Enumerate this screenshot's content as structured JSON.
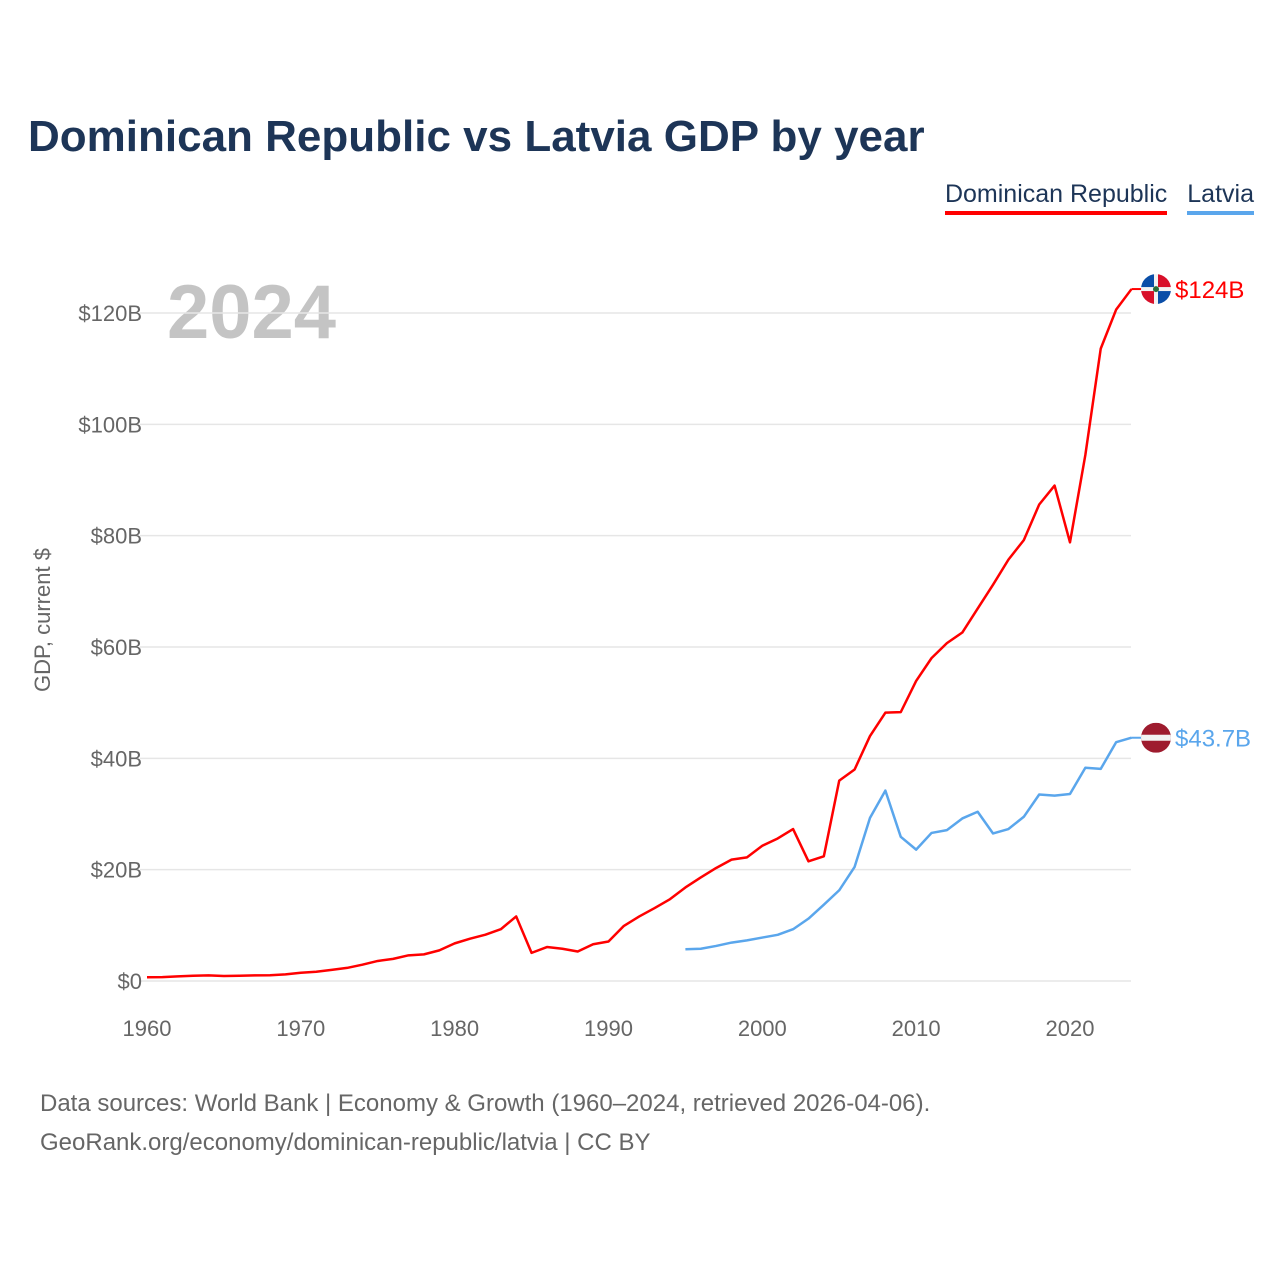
{
  "chart_data": {
    "type": "line",
    "title": "Dominican Republic vs Latvia GDP by year",
    "ylabel": "GDP, current $",
    "xlabel": "",
    "year_watermark": "2024",
    "xlim": [
      1960,
      2024
    ],
    "ylim": [
      0,
      125
    ],
    "x_ticks": [
      1960,
      1970,
      1980,
      1990,
      2000,
      2010,
      2020
    ],
    "x_tick_labels": [
      "1960",
      "1970",
      "1980",
      "1990",
      "2000",
      "2010",
      "2020"
    ],
    "y_ticks": [
      0,
      20,
      40,
      60,
      80,
      100,
      120
    ],
    "y_tick_labels": [
      "$0",
      "$20B",
      "$40B",
      "$60B",
      "$80B",
      "$100B",
      "$120B"
    ],
    "grid": true,
    "legend_placement": "top-right",
    "series": [
      {
        "name": "Dominican Republic",
        "color": "#ff0000",
        "end_label": "$124B",
        "flag": "dominican-republic-flag",
        "start_year": 1960,
        "values": [
          0.67,
          0.69,
          0.82,
          0.94,
          1.0,
          0.89,
          0.95,
          1.0,
          1.03,
          1.2,
          1.49,
          1.67,
          1.99,
          2.35,
          2.93,
          3.6,
          3.97,
          4.61,
          4.78,
          5.5,
          6.76,
          7.6,
          8.32,
          9.3,
          11.6,
          5.05,
          6.1,
          5.8,
          5.3,
          6.6,
          7.1,
          9.9,
          11.6,
          13.1,
          14.7,
          16.8,
          18.6,
          20.3,
          21.8,
          22.2,
          24.3,
          25.6,
          27.3,
          21.5,
          22.4,
          36.0,
          38.0,
          44.0,
          48.2,
          48.3,
          53.9,
          58.0,
          60.7,
          62.6,
          66.9,
          71.2,
          75.7,
          79.2,
          85.6,
          89.0,
          78.8,
          94.5,
          113.6,
          120.6,
          124.3
        ]
      },
      {
        "name": "Latvia",
        "color": "#5aa6ec",
        "end_label": "$43.7B",
        "flag": "latvia-flag",
        "start_year": 1995,
        "values": [
          5.7,
          5.8,
          6.3,
          6.9,
          7.3,
          7.8,
          8.3,
          9.3,
          11.2,
          13.7,
          16.3,
          20.5,
          29.3,
          34.2,
          25.9,
          23.6,
          26.6,
          27.1,
          29.2,
          30.4,
          26.5,
          27.3,
          29.5,
          33.5,
          33.3,
          33.6,
          38.3,
          38.1,
          42.9,
          43.7
        ]
      }
    ]
  },
  "footer": {
    "line1": "Data sources: World Bank | Economy & Growth (1960–2024, retrieved 2026-04-06).",
    "line2": "GeoRank.org/economy/dominican-republic/latvia | CC BY"
  }
}
